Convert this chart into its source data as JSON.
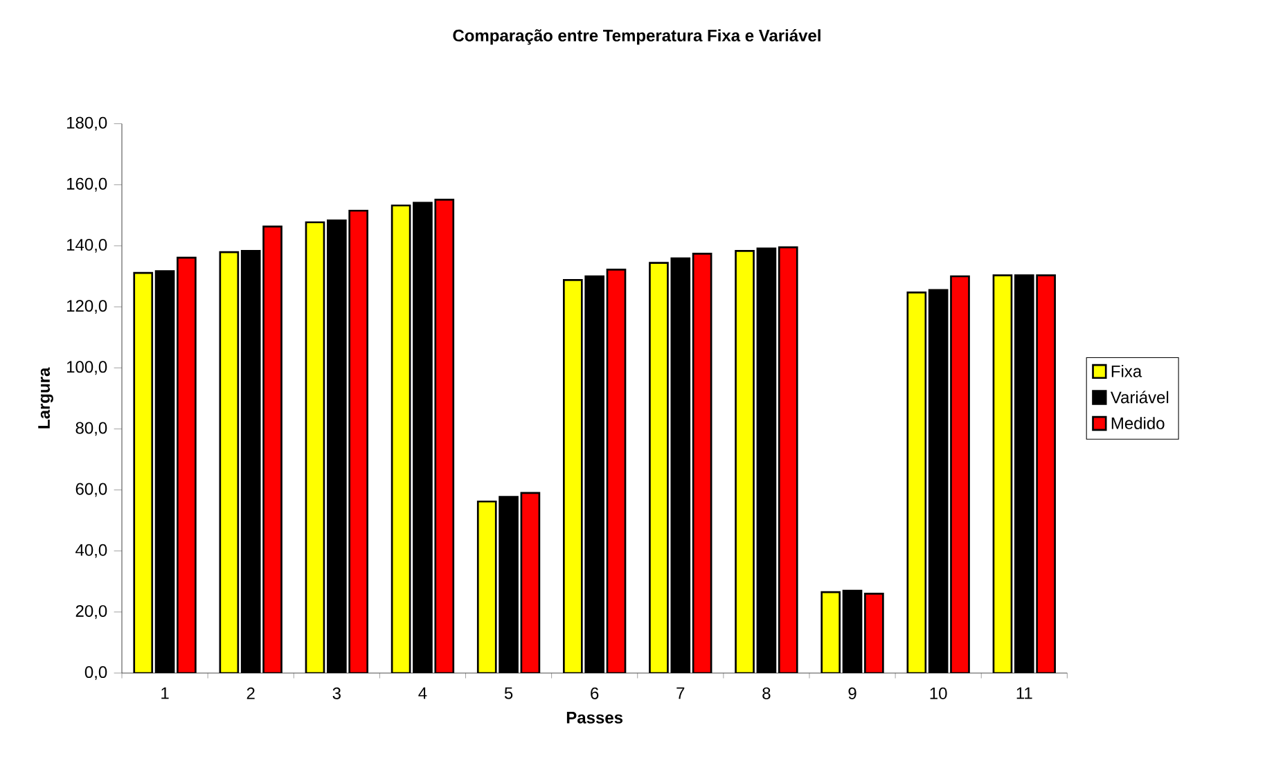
{
  "chart_data": {
    "type": "bar",
    "title": "Comparação entre Temperatura Fixa e Variável",
    "xlabel": "Passes",
    "ylabel": "Largura",
    "categories": [
      "1",
      "2",
      "3",
      "4",
      "5",
      "6",
      "7",
      "8",
      "9",
      "10",
      "11"
    ],
    "series": [
      {
        "name": "Fixa",
        "color": "#ffff00",
        "values": [
          131.1,
          137.9,
          147.7,
          153.2,
          56.2,
          128.8,
          134.4,
          138.3,
          26.5,
          124.7,
          130.3
        ]
      },
      {
        "name": "Variável",
        "color": "#000000",
        "values": [
          131.7,
          138.3,
          148.3,
          154.1,
          57.7,
          130.0,
          135.9,
          139.1,
          27.0,
          125.5,
          130.3
        ]
      },
      {
        "name": "Medido",
        "color": "#ff0000",
        "values": [
          136.1,
          146.3,
          151.5,
          155.1,
          59.0,
          132.2,
          137.4,
          139.5,
          26.0,
          130.0,
          130.3
        ]
      }
    ],
    "ylim": [
      0,
      180
    ],
    "yticks": [
      {
        "value": 0,
        "label": "0,0"
      },
      {
        "value": 20,
        "label": "20,0"
      },
      {
        "value": 40,
        "label": "40,0"
      },
      {
        "value": 60,
        "label": "60,0"
      },
      {
        "value": 80,
        "label": "80,0"
      },
      {
        "value": 100,
        "label": "100,0"
      },
      {
        "value": 120,
        "label": "120,0"
      },
      {
        "value": 140,
        "label": "140,0"
      },
      {
        "value": 160,
        "label": "160,0"
      },
      {
        "value": 180,
        "label": "180,0"
      }
    ],
    "legend": "right",
    "grid": false
  }
}
